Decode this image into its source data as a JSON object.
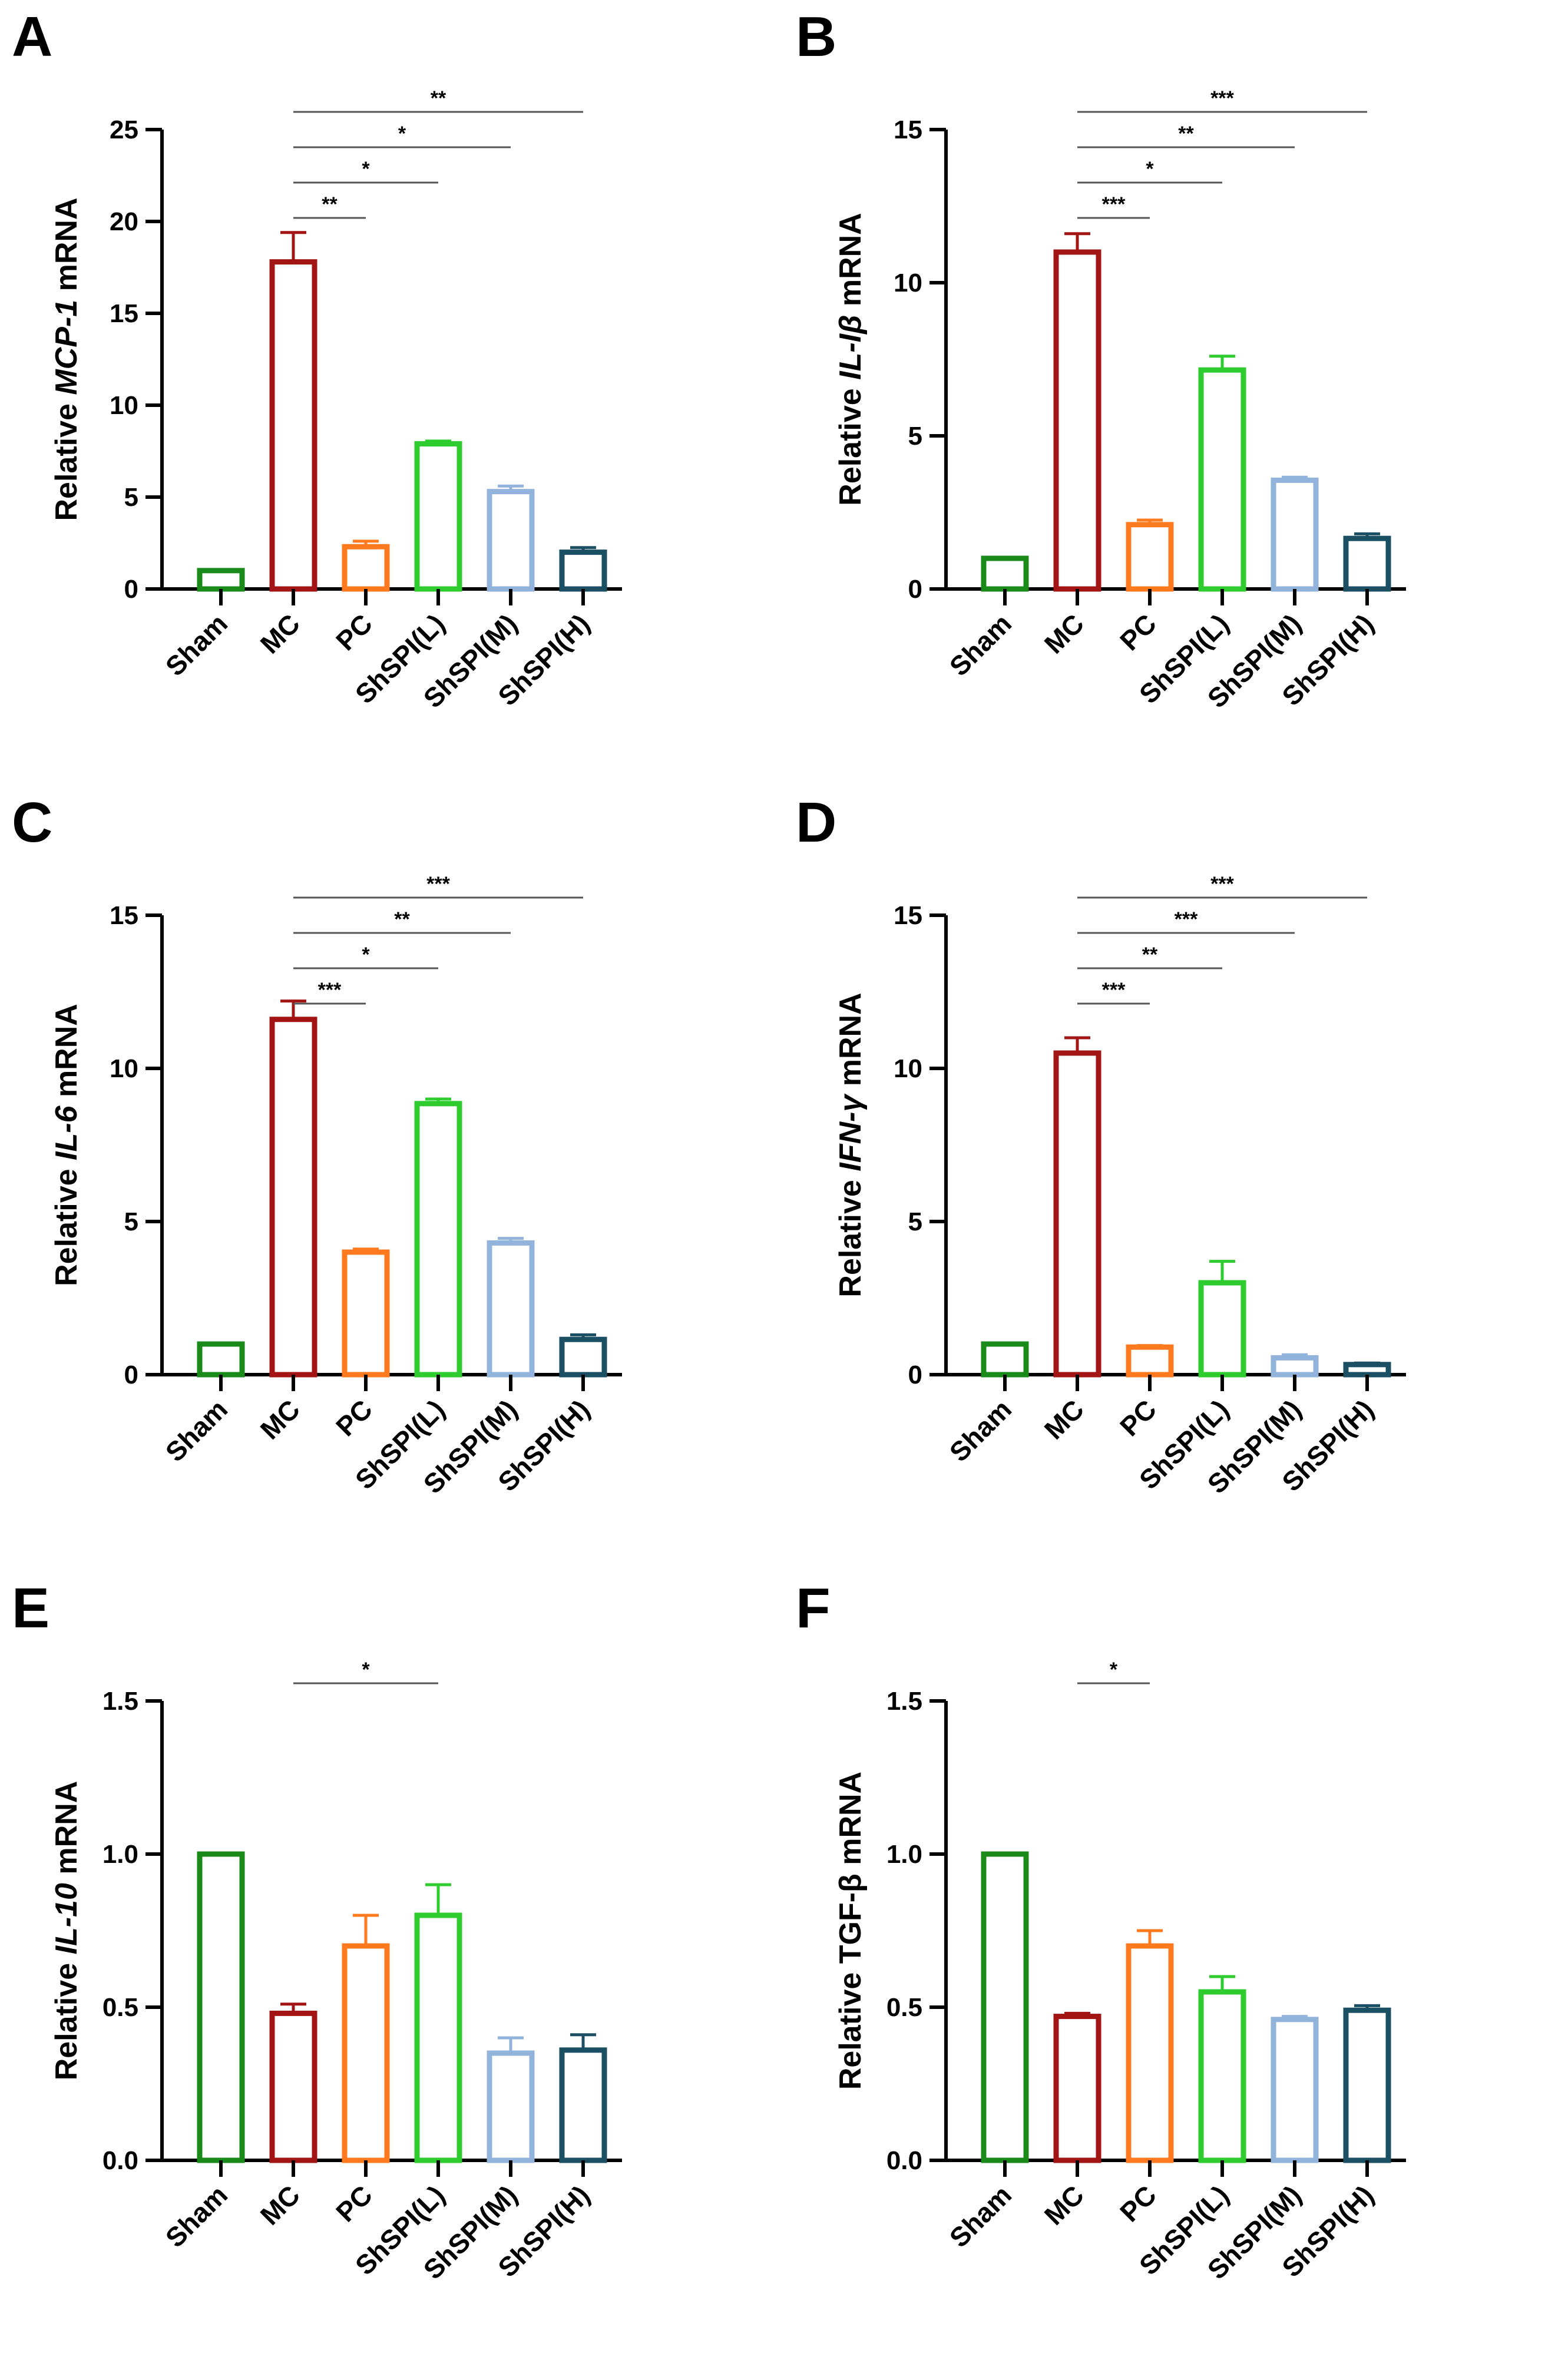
{
  "colors": {
    "Sham": "#1a8a1a",
    "MC": "#a31515",
    "PC": "#ff7a1f",
    "ShSPI(L)": "#2ecc2e",
    "ShSPI(M)": "#92b4dc",
    "ShSPI(H)": "#1b4f63",
    "axis": "#000000",
    "bracket": "#555555"
  },
  "chart_data": [
    {
      "panel": "A",
      "type": "bar",
      "title": "",
      "ylabel_prefix": "Relative ",
      "ylabel_gene": "MCP-1",
      "ylabel_gene_italic": true,
      "ylabel_suffix": " mRNA",
      "xlabel": "",
      "categories": [
        "Sham",
        "MC",
        "PC",
        "ShSPI(L)",
        "ShSPI(M)",
        "ShSPI(H)"
      ],
      "values": [
        1.0,
        17.8,
        2.3,
        7.9,
        5.3,
        2.0
      ],
      "errors": [
        0.0,
        1.6,
        0.3,
        0.15,
        0.3,
        0.25
      ],
      "ylim": [
        0,
        25
      ],
      "yticks": [
        0,
        5,
        10,
        15,
        20,
        25
      ],
      "ytick_labels": [
        "0",
        "5",
        "10",
        "15",
        "20",
        "25"
      ],
      "significance": [
        {
          "from": "MC",
          "to": "PC",
          "label": "**"
        },
        {
          "from": "MC",
          "to": "ShSPI(L)",
          "label": "*"
        },
        {
          "from": "MC",
          "to": "ShSPI(M)",
          "label": "*"
        },
        {
          "from": "MC",
          "to": "ShSPI(H)",
          "label": "**"
        }
      ]
    },
    {
      "panel": "B",
      "type": "bar",
      "title": "",
      "ylabel_prefix": "Relative ",
      "ylabel_gene": "IL-Iβ",
      "ylabel_gene_italic": true,
      "ylabel_suffix": " mRNA",
      "xlabel": "",
      "categories": [
        "Sham",
        "MC",
        "PC",
        "ShSPI(L)",
        "ShSPI(M)",
        "ShSPI(H)"
      ],
      "values": [
        1.0,
        11.0,
        2.1,
        7.15,
        3.55,
        1.65
      ],
      "errors": [
        0.0,
        0.6,
        0.15,
        0.45,
        0.1,
        0.15
      ],
      "ylim": [
        0,
        15
      ],
      "yticks": [
        0,
        5,
        10,
        15
      ],
      "ytick_labels": [
        "0",
        "5",
        "10",
        "15"
      ],
      "significance": [
        {
          "from": "MC",
          "to": "PC",
          "label": "***"
        },
        {
          "from": "MC",
          "to": "ShSPI(L)",
          "label": "*"
        },
        {
          "from": "MC",
          "to": "ShSPI(M)",
          "label": "**"
        },
        {
          "from": "MC",
          "to": "ShSPI(H)",
          "label": "***"
        }
      ]
    },
    {
      "panel": "C",
      "type": "bar",
      "title": "",
      "ylabel_prefix": "Relative ",
      "ylabel_gene": "IL-6",
      "ylabel_gene_italic": true,
      "ylabel_suffix": " mRNA",
      "xlabel": "",
      "categories": [
        "Sham",
        "MC",
        "PC",
        "ShSPI(L)",
        "ShSPI(M)",
        "ShSPI(H)"
      ],
      "values": [
        1.0,
        11.6,
        4.0,
        8.85,
        4.3,
        1.15
      ],
      "errors": [
        0.0,
        0.6,
        0.1,
        0.15,
        0.15,
        0.15
      ],
      "ylim": [
        0,
        15
      ],
      "yticks": [
        0,
        5,
        10,
        15
      ],
      "ytick_labels": [
        "0",
        "5",
        "10",
        "15"
      ],
      "significance": [
        {
          "from": "MC",
          "to": "PC",
          "label": "***"
        },
        {
          "from": "MC",
          "to": "ShSPI(L)",
          "label": "*"
        },
        {
          "from": "MC",
          "to": "ShSPI(M)",
          "label": "**"
        },
        {
          "from": "MC",
          "to": "ShSPI(H)",
          "label": "***"
        }
      ]
    },
    {
      "panel": "D",
      "type": "bar",
      "title": "",
      "ylabel_prefix": "Relative ",
      "ylabel_gene": "IFN-γ",
      "ylabel_gene_italic": true,
      "ylabel_suffix": " mRNA",
      "xlabel": "",
      "categories": [
        "Sham",
        "MC",
        "PC",
        "ShSPI(L)",
        "ShSPI(M)",
        "ShSPI(H)"
      ],
      "values": [
        1.0,
        10.5,
        0.9,
        3.0,
        0.55,
        0.33
      ],
      "errors": [
        0.0,
        0.5,
        0.05,
        0.7,
        0.1,
        0.05
      ],
      "ylim": [
        0,
        15
      ],
      "yticks": [
        0,
        5,
        10,
        15
      ],
      "ytick_labels": [
        "0",
        "5",
        "10",
        "15"
      ],
      "significance": [
        {
          "from": "MC",
          "to": "PC",
          "label": "***"
        },
        {
          "from": "MC",
          "to": "ShSPI(L)",
          "label": "**"
        },
        {
          "from": "MC",
          "to": "ShSPI(M)",
          "label": "***"
        },
        {
          "from": "MC",
          "to": "ShSPI(H)",
          "label": "***"
        }
      ]
    },
    {
      "panel": "E",
      "type": "bar",
      "title": "",
      "ylabel_prefix": "Relative ",
      "ylabel_gene": "IL-10",
      "ylabel_gene_italic": true,
      "ylabel_suffix": " mRNA",
      "xlabel": "",
      "categories": [
        "Sham",
        "MC",
        "PC",
        "ShSPI(L)",
        "ShSPI(M)",
        "ShSPI(H)"
      ],
      "values": [
        1.0,
        0.48,
        0.7,
        0.8,
        0.35,
        0.36
      ],
      "errors": [
        0.0,
        0.03,
        0.1,
        0.1,
        0.05,
        0.05
      ],
      "ylim": [
        0,
        1.5
      ],
      "yticks": [
        0,
        0.5,
        1.0,
        1.5
      ],
      "ytick_labels": [
        "0.0",
        "0.5",
        "1.0",
        "1.5"
      ],
      "significance": [
        {
          "from": "MC",
          "to": "ShSPI(L)",
          "label": "*"
        }
      ]
    },
    {
      "panel": "F",
      "type": "bar",
      "title": "",
      "ylabel_prefix": "Relative ",
      "ylabel_gene": "TGF-β",
      "ylabel_gene_italic": false,
      "ylabel_suffix": " mRNA",
      "xlabel": "",
      "categories": [
        "Sham",
        "MC",
        "PC",
        "ShSPI(L)",
        "ShSPI(M)",
        "ShSPI(H)"
      ],
      "values": [
        1.0,
        0.47,
        0.7,
        0.55,
        0.46,
        0.49
      ],
      "errors": [
        0.0,
        0.01,
        0.05,
        0.05,
        0.01,
        0.015
      ],
      "ylim": [
        0,
        1.5
      ],
      "yticks": [
        0,
        0.5,
        1.0,
        1.5
      ],
      "ytick_labels": [
        "0.0",
        "0.5",
        "1.0",
        "1.5"
      ],
      "significance": [
        {
          "from": "MC",
          "to": "PC",
          "label": "*"
        }
      ]
    }
  ]
}
